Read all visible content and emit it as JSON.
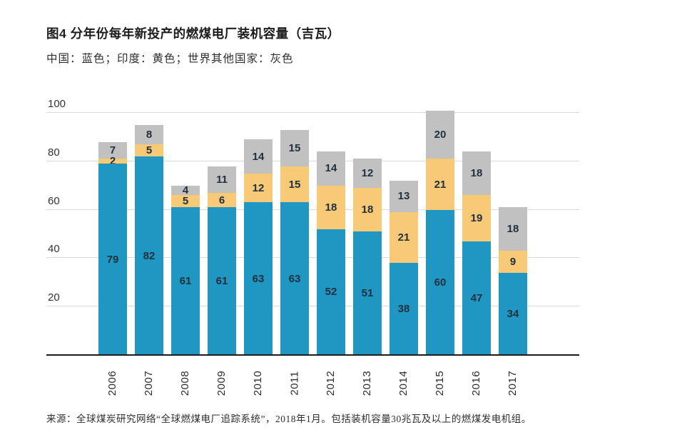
{
  "title": "图4 分年份每年新投产的燃煤电厂装机容量（吉瓦）",
  "subtitle": "中国：蓝色；印度：黄色；世界其他国家：灰色",
  "source": "来源：全球煤炭研究网络“全球燃煤电厂追踪系统”，2018年1月。包括装机容量30兆瓦及以上的燃煤发电机组。",
  "colors": {
    "china_blue": "#2096C3",
    "india_yellow": "#F8C977",
    "world_gray": "#C1C1C1",
    "value_label": "#22303E",
    "gridline": "#D9D9D9",
    "axis_line": "#1B1B1B"
  },
  "chart_data": {
    "type": "bar",
    "stacked": true,
    "title": "图4 分年份每年新投产的燃煤电厂装机容量（吉瓦）",
    "xlabel": "",
    "ylabel": "",
    "ylim": [
      0,
      100
    ],
    "yticks": [
      20,
      40,
      60,
      80,
      100
    ],
    "grid": true,
    "legend_position": "subtitle-text",
    "categories": [
      "2006",
      "2007",
      "2008",
      "2009",
      "2010",
      "2011",
      "2012",
      "2013",
      "2014",
      "2015",
      "2016",
      "2017"
    ],
    "series": [
      {
        "key": "china",
        "name": "中国",
        "color": "#2096C3",
        "values": [
          79,
          82,
          61,
          61,
          63,
          63,
          52,
          51,
          38,
          60,
          47,
          34
        ]
      },
      {
        "key": "india",
        "name": "印度",
        "color": "#F8C977",
        "values": [
          2,
          5,
          5,
          6,
          12,
          15,
          18,
          18,
          21,
          21,
          19,
          9
        ]
      },
      {
        "key": "world",
        "name": "世界其他国家",
        "color": "#C1C1C1",
        "values": [
          7,
          8,
          4,
          11,
          14,
          15,
          14,
          12,
          13,
          20,
          18,
          18
        ]
      }
    ],
    "totals": [
      88,
      95,
      70,
      78,
      89,
      93,
      84,
      81,
      72,
      101,
      84,
      61
    ]
  }
}
